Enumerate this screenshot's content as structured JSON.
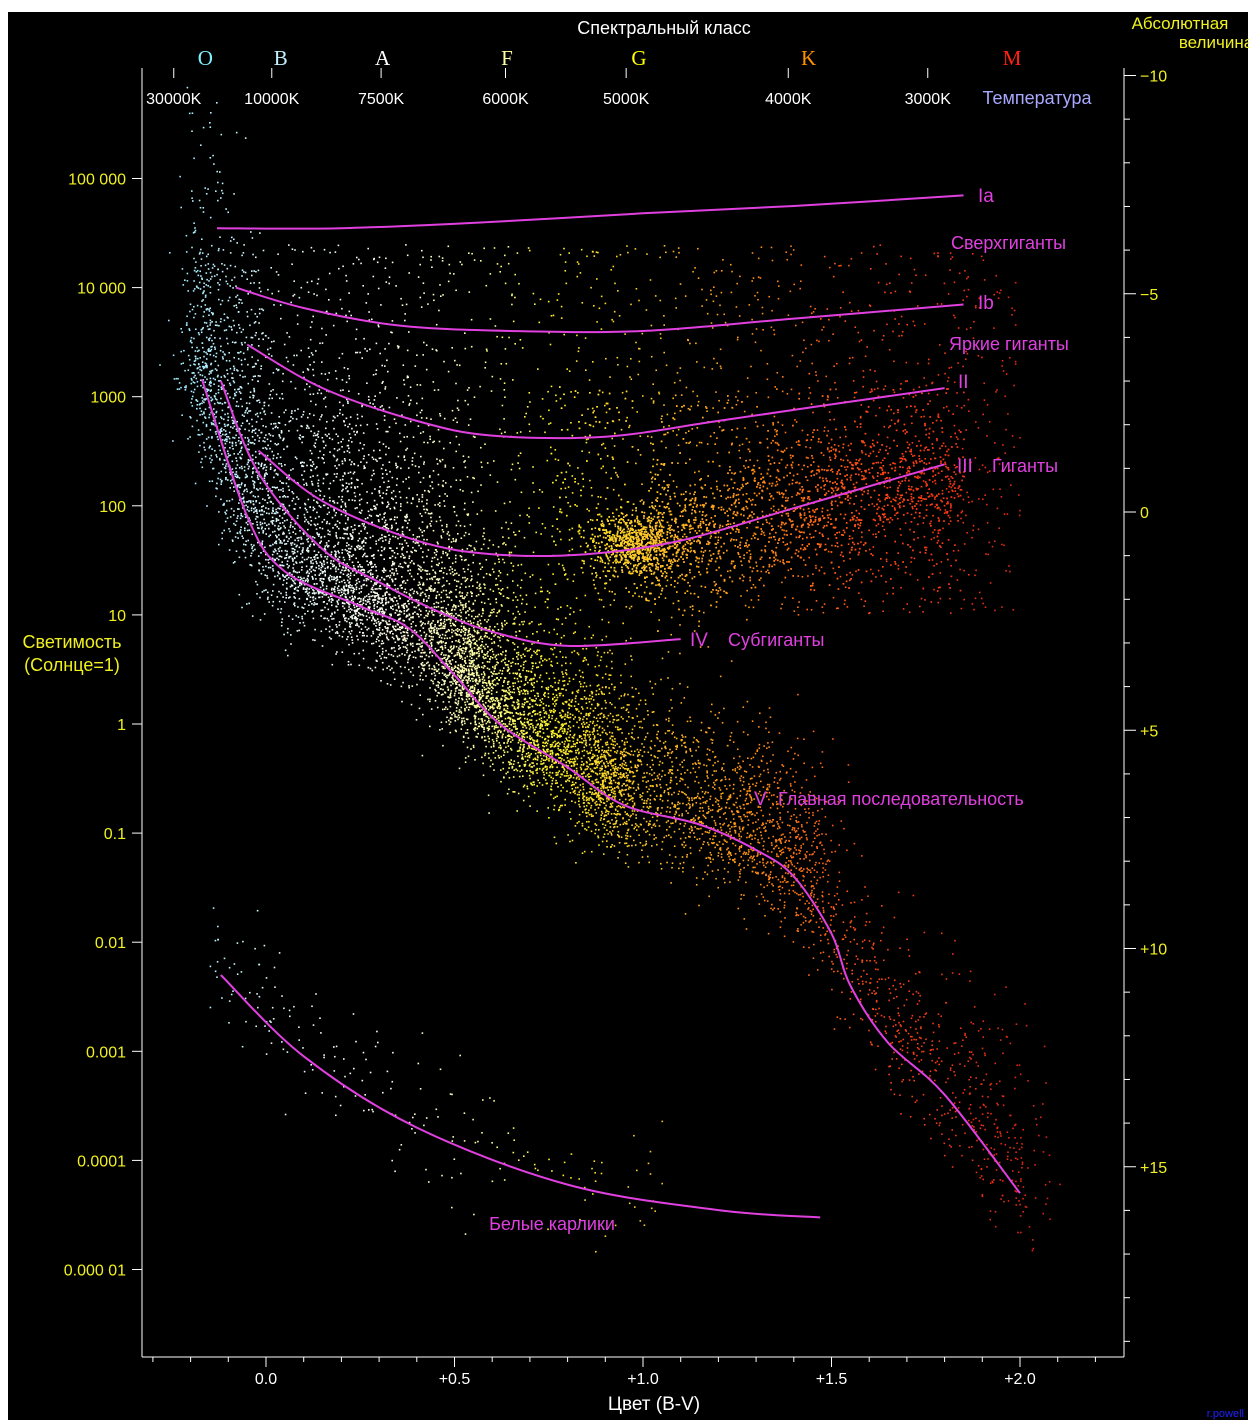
{
  "chart_data": {
    "type": "scatter",
    "title": "",
    "colors": {
      "background": "#000000",
      "axis": "#ffffff",
      "curves": "#e040e0",
      "left_axis_text": "#f0f020",
      "right_axis_text": "#f0f020",
      "temperature_text": "#ffffff",
      "temperature_label": "#a8a8ff",
      "bottom_text": "#ffffff",
      "top_title": "#ffffff",
      "credit": "#2020ff"
    },
    "x_axis": {
      "label": "Цвет (B-V)",
      "range": [
        -0.33,
        2.3
      ],
      "ticks": [
        0.0,
        0.5,
        1.0,
        1.5,
        2.0
      ],
      "tick_labels": [
        "0.0",
        "+0.5",
        "+1.0",
        "+1.5",
        "+2.0"
      ]
    },
    "y_axis_left": {
      "label_line1": "Светимость",
      "label_line2": "(Солнце=1)",
      "scale": "log",
      "range": [
        1e-06,
        1000000
      ],
      "ticks": [
        100000,
        10000,
        1000,
        100,
        10,
        1,
        0.1,
        0.01,
        0.001,
        0.0001,
        1e-05
      ],
      "tick_labels": [
        "100 000",
        "10 000",
        "1000",
        "100",
        "10",
        "1",
        "0.1",
        "0.01",
        "0.001",
        "0.0001",
        "0.000 01"
      ]
    },
    "y_axis_right": {
      "label_line1": "Абсолютная",
      "label_line2": "величина",
      "ticks": [
        -10,
        -5,
        0,
        5,
        10,
        15
      ],
      "tick_labels": [
        "−10",
        "−5",
        "0",
        "+5",
        "+10",
        "+15"
      ]
    },
    "spectral_axis": {
      "title": "Спектральный класс",
      "classes": [
        {
          "label": "O",
          "bv": -0.32,
          "color": "#80f0ff"
        },
        {
          "label": "B",
          "bv": -0.12,
          "color": "#c0f0ff"
        },
        {
          "label": "A",
          "bv": 0.15,
          "color": "#ffffff"
        },
        {
          "label": "F",
          "bv": 0.48,
          "color": "#ffffa0"
        },
        {
          "label": "G",
          "bv": 0.83,
          "color": "#ffff00"
        },
        {
          "label": "K",
          "bv": 1.28,
          "color": "#ff9000"
        },
        {
          "label": "M",
          "bv": 1.82,
          "color": "#ff2010"
        }
      ]
    },
    "temperature_axis": {
      "label": "Температура",
      "ticks": [
        {
          "label": "30000K",
          "bv": -0.25
        },
        {
          "label": "10000K",
          "bv": 0.01
        },
        {
          "label": "7500K",
          "bv": 0.3
        },
        {
          "label": "6000K",
          "bv": 0.63
        },
        {
          "label": "5000K",
          "bv": 0.95
        },
        {
          "label": "4000K",
          "bv": 1.38
        },
        {
          "label": "3000K",
          "bv": 1.75
        }
      ]
    },
    "luminosity_classes": [
      {
        "name": "Ia",
        "points": [
          [
            -0.13,
            35000
          ],
          [
            0.2,
            35000
          ],
          [
            0.6,
            40000
          ],
          [
            1.0,
            48000
          ],
          [
            1.4,
            56000
          ],
          [
            1.85,
            70000
          ]
        ]
      },
      {
        "name": "Ib",
        "points": [
          [
            -0.08,
            10000
          ],
          [
            0.1,
            6500
          ],
          [
            0.35,
            4500
          ],
          [
            0.65,
            4000
          ],
          [
            1.0,
            4000
          ],
          [
            1.4,
            5200
          ],
          [
            1.85,
            7000
          ]
        ]
      },
      {
        "name": "II",
        "points": [
          [
            -0.05,
            3000
          ],
          [
            0.15,
            1200
          ],
          [
            0.4,
            600
          ],
          [
            0.6,
            440
          ],
          [
            0.9,
            430
          ],
          [
            1.2,
            600
          ],
          [
            1.5,
            850
          ],
          [
            1.8,
            1200
          ]
        ]
      },
      {
        "name": "III",
        "points": [
          [
            -0.02,
            320
          ],
          [
            0.15,
            110
          ],
          [
            0.4,
            48
          ],
          [
            0.6,
            36
          ],
          [
            0.85,
            36
          ],
          [
            1.1,
            48
          ],
          [
            1.4,
            95
          ],
          [
            1.8,
            240
          ]
        ]
      },
      {
        "name": "IV",
        "points": [
          [
            -0.12,
            1400
          ],
          [
            -0.02,
            200
          ],
          [
            0.15,
            40
          ],
          [
            0.3,
            20
          ],
          [
            0.45,
            11
          ],
          [
            0.6,
            7
          ],
          [
            0.8,
            5.2
          ],
          [
            1.1,
            6
          ]
        ]
      },
      {
        "name": "V",
        "points": [
          [
            -0.17,
            1450
          ],
          [
            -0.05,
            80
          ],
          [
            0.05,
            25
          ],
          [
            0.25,
            12
          ],
          [
            0.38,
            7.5
          ],
          [
            0.5,
            2.8
          ],
          [
            0.62,
            1.0
          ],
          [
            0.8,
            0.4
          ],
          [
            0.95,
            0.18
          ],
          [
            1.15,
            0.12
          ],
          [
            1.3,
            0.07
          ],
          [
            1.4,
            0.04
          ],
          [
            1.5,
            0.012
          ],
          [
            1.55,
            0.004
          ],
          [
            1.65,
            0.0012
          ],
          [
            1.8,
            0.0004
          ],
          [
            2.0,
            5e-05
          ]
        ]
      },
      {
        "name": "WD",
        "points": [
          [
            -0.12,
            0.005
          ],
          [
            0.1,
            0.0009
          ],
          [
            0.4,
            0.0002
          ],
          [
            0.8,
            6e-05
          ],
          [
            1.2,
            3.5e-05
          ],
          [
            1.47,
            3e-05
          ]
        ]
      }
    ],
    "annotations": {
      "Ia": "Ia",
      "supergiants": "Сверхгиганты",
      "Ib": "Ib",
      "bright_giants": "Яркие гиганты",
      "II": "II",
      "III": "III",
      "giants": "Гиганты",
      "IV": "IV",
      "subgiants": "Субгиганты",
      "V": "V",
      "main_sequence": "Главная последовательность",
      "white_dwarfs": "Белые карлики"
    },
    "star_populations": [
      {
        "name": "main_sequence",
        "count": 9000
      },
      {
        "name": "giants",
        "count": 5000
      },
      {
        "name": "white_dwarfs",
        "count": 200
      },
      {
        "name": "field",
        "count": 2000
      }
    ],
    "grid": false,
    "legend": "none",
    "credit": "r.powell"
  }
}
